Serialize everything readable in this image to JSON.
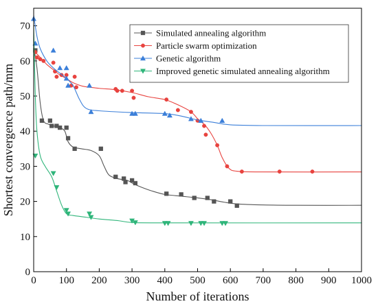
{
  "chart_data": {
    "type": "line",
    "xlabel": "Number of iterations",
    "ylabel": "Shortest convergence path/mm",
    "xlim": [
      0,
      1000
    ],
    "ylim": [
      0,
      75
    ],
    "xticks": [
      0,
      100,
      200,
      300,
      400,
      500,
      600,
      700,
      800,
      900,
      1000
    ],
    "yticks": [
      0,
      10,
      20,
      30,
      40,
      50,
      60,
      70
    ],
    "x_tick_labels": [
      "0",
      "100",
      "200",
      "300",
      "400",
      "500",
      "600",
      "700",
      "800",
      "900",
      "1000"
    ],
    "y_tick_labels": [
      "0",
      "10",
      "20",
      "30",
      "40",
      "50",
      "60",
      "70"
    ],
    "legend_position": "top-right",
    "grid": false,
    "series": [
      {
        "name": "Simulated annealing algorithm",
        "color": "#555555",
        "marker": "square",
        "curve": [
          [
            0,
            64
          ],
          [
            10,
            58
          ],
          [
            20,
            48
          ],
          [
            30,
            43
          ],
          [
            45,
            42
          ],
          [
            60,
            41.5
          ],
          [
            80,
            41
          ],
          [
            95,
            40
          ],
          [
            105,
            37
          ],
          [
            120,
            35.5
          ],
          [
            145,
            35
          ],
          [
            175,
            34.5
          ],
          [
            200,
            33
          ],
          [
            215,
            30
          ],
          [
            230,
            27.5
          ],
          [
            255,
            26.5
          ],
          [
            285,
            26
          ],
          [
            305,
            25
          ],
          [
            330,
            24
          ],
          [
            360,
            23
          ],
          [
            400,
            22
          ],
          [
            450,
            21.5
          ],
          [
            500,
            21
          ],
          [
            540,
            20.5
          ],
          [
            580,
            19.8
          ],
          [
            620,
            19.3
          ],
          [
            700,
            19
          ],
          [
            800,
            18.9
          ],
          [
            1000,
            18.9
          ]
        ],
        "points": [
          [
            5,
            63
          ],
          [
            25,
            43
          ],
          [
            50,
            43
          ],
          [
            55,
            41.5
          ],
          [
            70,
            41.5
          ],
          [
            80,
            41
          ],
          [
            100,
            41
          ],
          [
            105,
            38
          ],
          [
            125,
            35
          ],
          [
            205,
            35
          ],
          [
            250,
            27
          ],
          [
            275,
            26.5
          ],
          [
            280,
            25.5
          ],
          [
            300,
            26
          ],
          [
            310,
            25.2
          ],
          [
            405,
            22.2
          ],
          [
            450,
            22
          ],
          [
            490,
            21
          ],
          [
            530,
            21
          ],
          [
            550,
            20
          ],
          [
            600,
            20
          ],
          [
            620,
            18.8
          ]
        ]
      },
      {
        "name": "Particle swarm optimization",
        "color": "#e8433f",
        "marker": "circle",
        "curve": [
          [
            0,
            63
          ],
          [
            20,
            61
          ],
          [
            40,
            59
          ],
          [
            60,
            57.5
          ],
          [
            80,
            56
          ],
          [
            100,
            55
          ],
          [
            120,
            53.8
          ],
          [
            150,
            52.8
          ],
          [
            200,
            52.2
          ],
          [
            250,
            51.8
          ],
          [
            300,
            51
          ],
          [
            350,
            49.8
          ],
          [
            400,
            49
          ],
          [
            440,
            47.5
          ],
          [
            480,
            45.5
          ],
          [
            505,
            43
          ],
          [
            520,
            42
          ],
          [
            540,
            39.5
          ],
          [
            560,
            36
          ],
          [
            575,
            32.5
          ],
          [
            595,
            29.5
          ],
          [
            620,
            28.6
          ],
          [
            700,
            28.4
          ],
          [
            1000,
            28.4
          ]
        ],
        "points": [
          [
            5,
            62.5
          ],
          [
            10,
            61
          ],
          [
            20,
            60.5
          ],
          [
            30,
            60
          ],
          [
            60,
            59.5
          ],
          [
            65,
            57
          ],
          [
            70,
            55.5
          ],
          [
            85,
            56
          ],
          [
            100,
            56
          ],
          [
            115,
            53
          ],
          [
            125,
            55.5
          ],
          [
            130,
            52.5
          ],
          [
            250,
            52
          ],
          [
            255,
            51.5
          ],
          [
            270,
            51.5
          ],
          [
            300,
            51.5
          ],
          [
            305,
            49.5
          ],
          [
            405,
            49
          ],
          [
            440,
            46
          ],
          [
            480,
            45.5
          ],
          [
            500,
            43
          ],
          [
            520,
            41.5
          ],
          [
            525,
            39
          ],
          [
            560,
            36
          ],
          [
            590,
            30
          ],
          [
            635,
            28.5
          ],
          [
            750,
            28.5
          ],
          [
            850,
            28.5
          ]
        ]
      },
      {
        "name": "Genetic algorithm",
        "color": "#3b7fd9",
        "marker": "triangle-up",
        "curve": [
          [
            0,
            73
          ],
          [
            10,
            67
          ],
          [
            20,
            63.5
          ],
          [
            40,
            60
          ],
          [
            60,
            58
          ],
          [
            80,
            56.5
          ],
          [
            100,
            55
          ],
          [
            120,
            53
          ],
          [
            140,
            49
          ],
          [
            160,
            46.5
          ],
          [
            200,
            45.8
          ],
          [
            300,
            45.3
          ],
          [
            400,
            45
          ],
          [
            450,
            44.3
          ],
          [
            500,
            43.2
          ],
          [
            550,
            42.5
          ],
          [
            600,
            41.8
          ],
          [
            700,
            41.6
          ],
          [
            1000,
            41.6
          ]
        ],
        "points": [
          [
            0,
            72
          ],
          [
            5,
            65
          ],
          [
            60,
            63
          ],
          [
            80,
            58
          ],
          [
            100,
            58
          ],
          [
            100,
            55
          ],
          [
            105,
            53
          ],
          [
            170,
            53
          ],
          [
            175,
            45.5
          ],
          [
            300,
            45
          ],
          [
            310,
            45
          ],
          [
            400,
            45
          ],
          [
            415,
            44.5
          ],
          [
            480,
            43.5
          ],
          [
            510,
            43
          ],
          [
            575,
            43
          ]
        ]
      },
      {
        "name": "Improved genetic simulated annealing algorithm",
        "color": "#2fb57a",
        "marker": "triangle-down",
        "curve": [
          [
            0,
            70
          ],
          [
            5,
            50
          ],
          [
            10,
            40
          ],
          [
            20,
            33
          ],
          [
            35,
            30
          ],
          [
            55,
            27
          ],
          [
            70,
            23
          ],
          [
            85,
            19
          ],
          [
            100,
            16.5
          ],
          [
            120,
            16
          ],
          [
            160,
            15.5
          ],
          [
            200,
            15
          ],
          [
            260,
            14.5
          ],
          [
            300,
            14
          ],
          [
            400,
            13.9
          ],
          [
            1000,
            13.9
          ]
        ],
        "points": [
          [
            5,
            33
          ],
          [
            60,
            28
          ],
          [
            70,
            24
          ],
          [
            100,
            17.5
          ],
          [
            105,
            16.5
          ],
          [
            170,
            16.5
          ],
          [
            175,
            15.5
          ],
          [
            300,
            14.5
          ],
          [
            310,
            14
          ],
          [
            400,
            13.8
          ],
          [
            410,
            13.8
          ],
          [
            480,
            13.8
          ],
          [
            510,
            13.8
          ],
          [
            520,
            13.8
          ],
          [
            575,
            13.8
          ],
          [
            585,
            13.8
          ]
        ]
      }
    ]
  }
}
